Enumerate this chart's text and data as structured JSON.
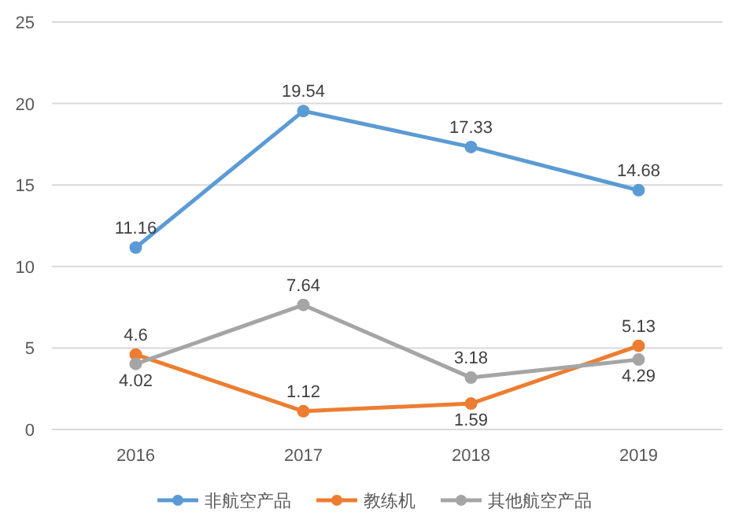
{
  "chart_data": {
    "type": "line",
    "categories": [
      "2016",
      "2017",
      "2018",
      "2019"
    ],
    "series": [
      {
        "name": "非航空产品",
        "color": "#5b9bd5",
        "values": [
          11.16,
          19.54,
          17.33,
          14.68
        ]
      },
      {
        "name": "教练机",
        "color": "#ed7d31",
        "values": [
          4.6,
          1.12,
          1.59,
          5.13
        ]
      },
      {
        "name": "其他航空产品",
        "color": "#a5a5a5",
        "values": [
          4.02,
          7.64,
          3.18,
          4.29
        ]
      }
    ],
    "ylim": [
      0,
      25
    ],
    "yticks": [
      0,
      5,
      10,
      15,
      20,
      25
    ],
    "grid": "y",
    "legend": "bottom",
    "data_labels": true,
    "marker": "circle",
    "line_style": "solid"
  }
}
